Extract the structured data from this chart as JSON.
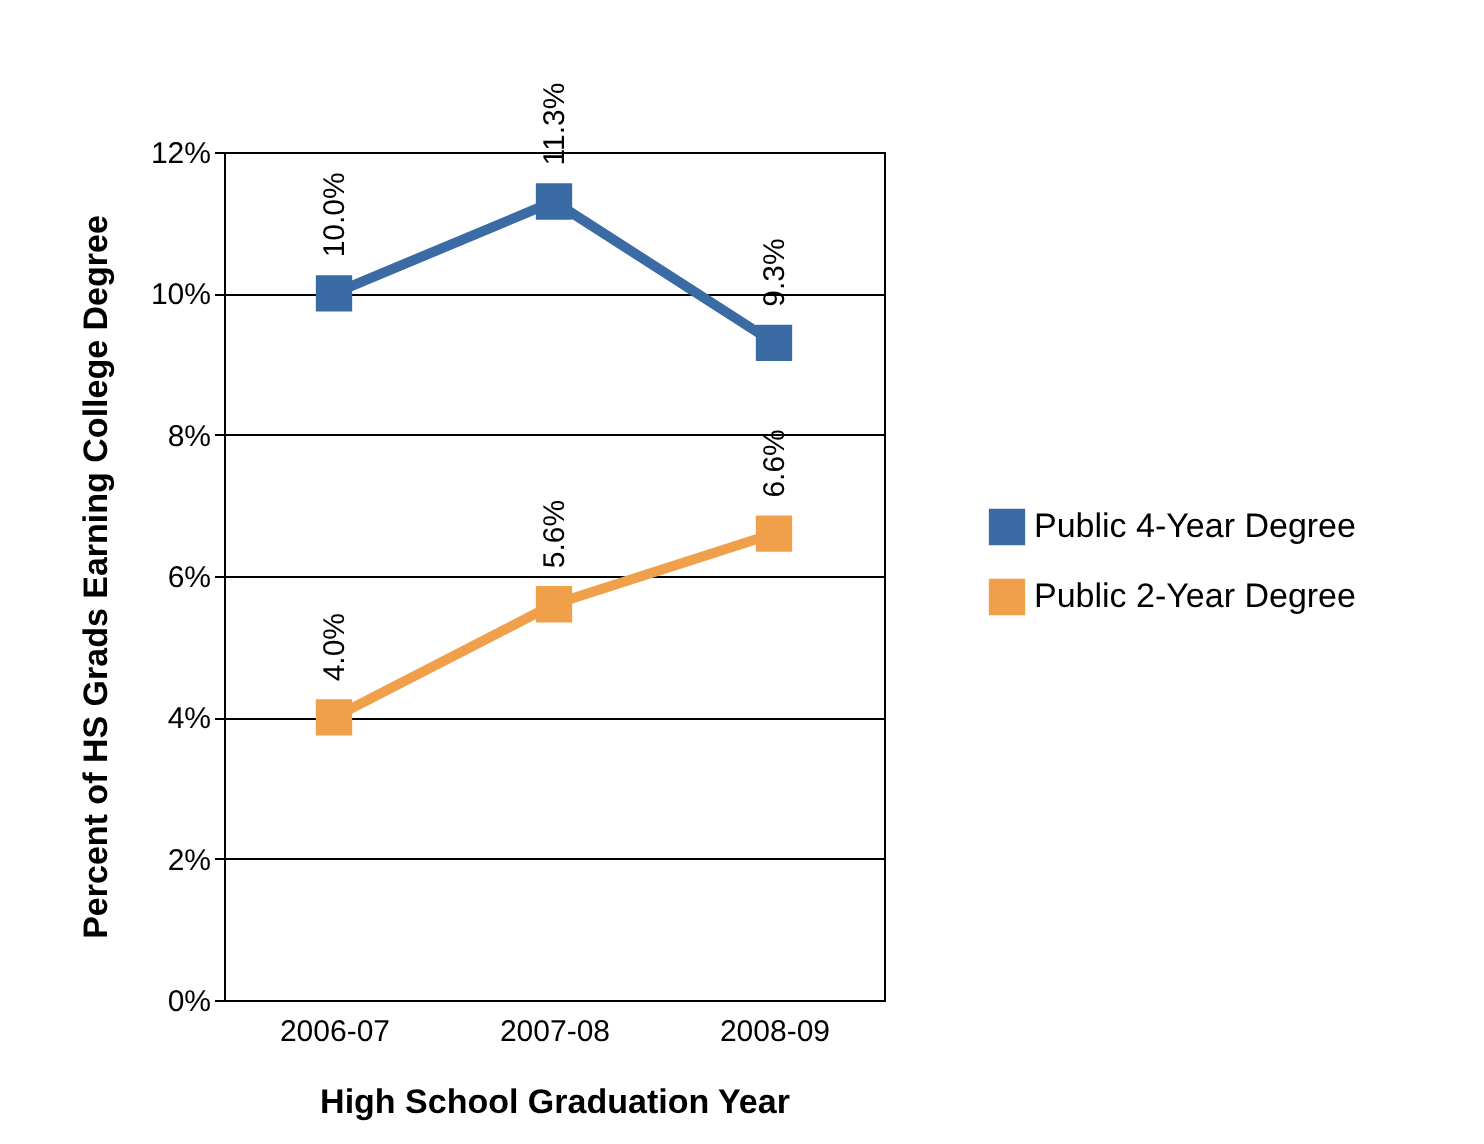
{
  "chart_data": {
    "type": "line",
    "xlabel": "High School Graduation Year",
    "ylabel": "Percent of HS Grads Earning College Degree",
    "categories": [
      "2006-07",
      "2007-08",
      "2008-09"
    ],
    "series": [
      {
        "name": "Public 4-Year Degree",
        "color": "#3b6ba5",
        "values": [
          10.0,
          11.3,
          9.3
        ],
        "value_labels": [
          "10.0%",
          "11.3%",
          "9.3%"
        ]
      },
      {
        "name": "Public 2-Year Degree",
        "color": "#f0a04b",
        "values": [
          4.0,
          5.6,
          6.6
        ],
        "value_labels": [
          "4.0%",
          "5.6%",
          "6.6%"
        ]
      }
    ],
    "ylim": [
      0,
      12
    ],
    "yticks": [
      {
        "value": 0,
        "label": "0%"
      },
      {
        "value": 2,
        "label": "2%"
      },
      {
        "value": 4,
        "label": "4%"
      },
      {
        "value": 6,
        "label": "6%"
      },
      {
        "value": 8,
        "label": "8%"
      },
      {
        "value": 10,
        "label": "10%"
      },
      {
        "value": 12,
        "label": "12%"
      }
    ],
    "grid": "y",
    "legend": "right",
    "marker": "square",
    "line_style": "solid"
  }
}
